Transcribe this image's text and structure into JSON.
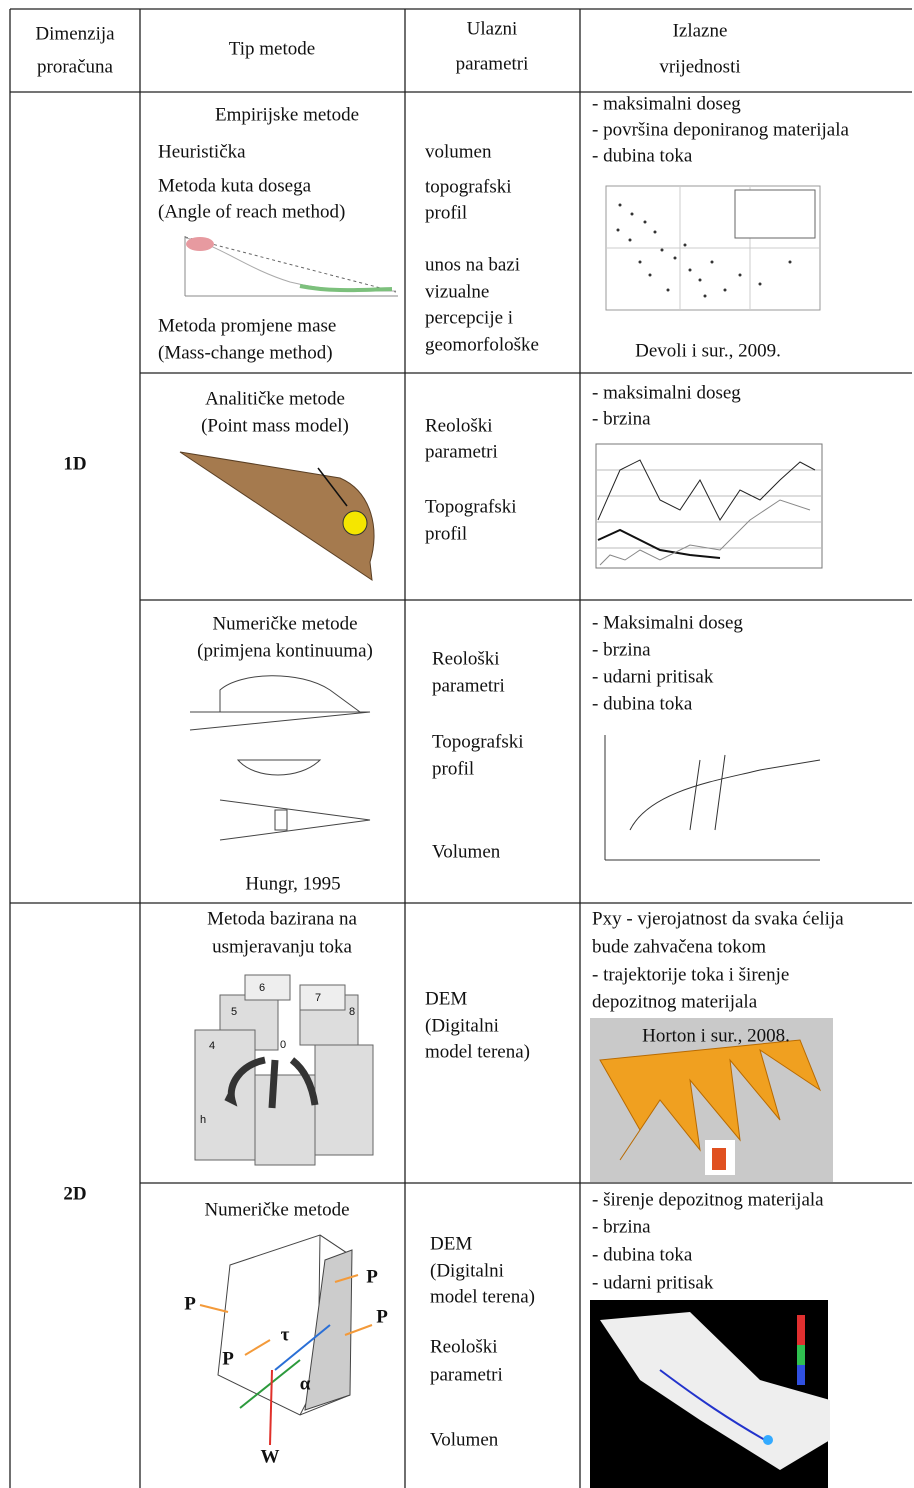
{
  "header": {
    "dimension": [
      "Dimenzija",
      "proračuna"
    ],
    "method_type": [
      "Tip metode"
    ],
    "inputs": [
      "Ulazni",
      "parametri"
    ],
    "outputs": [
      "Izlazne",
      "vrijednosti"
    ]
  },
  "rows": [
    {
      "dimension": "1D",
      "methods": [
        {
          "title": [
            "Empirijske metode"
          ],
          "items": [
            "Heuristička",
            "Metoda kuta dosega",
            "(Angle of reach method)",
            "Metoda promjene mase",
            "(Mass-change method)"
          ],
          "inputs": [
            "volumen",
            "topografski",
            "profil",
            "unos na bazi",
            "vizualne",
            "percepcije i",
            "geomorfološke"
          ],
          "outputs": [
            "- maksimalni doseg",
            "- površina deponiranog materijala",
            "- dubina toka"
          ],
          "output_caption": "Devoli i sur., 2009."
        },
        {
          "title": [
            "Analitičke metode",
            "(Point mass model)"
          ],
          "inputs": [
            "Reološki",
            "parametri",
            "Topografski",
            "profil"
          ],
          "outputs": [
            "- maksimalni doseg",
            "- brzina"
          ]
        },
        {
          "title": [
            "Numeričke metode",
            "(primjena kontinuuma)"
          ],
          "image_caption": "Hungr, 1995",
          "inputs": [
            "Reološki",
            "parametri",
            "Topografski",
            "profil",
            "Volumen"
          ],
          "outputs": [
            "- Maksimalni doseg",
            "- brzina",
            "- udarni pritisak",
            "- dubina toka"
          ]
        }
      ]
    },
    {
      "dimension": "2D",
      "methods": [
        {
          "title": [
            "Metoda bazirana na",
            "usmjeravanju toka"
          ],
          "figure_labels": [
            "6",
            "7",
            "5",
            "8",
            "4",
            "0",
            "h"
          ],
          "inputs": [
            "DEM",
            "(Digitalni",
            "model terena)"
          ],
          "outputs": [
            "Pxy - vjerojatnost da svaka ćelija",
            "bude zahvačena tokom",
            "- trajektorije toka i širenje",
            "depozitnog materijala"
          ],
          "output_caption": "Horton i sur., 2008."
        },
        {
          "title": [
            "Numeričke metode"
          ],
          "figure_labels": [
            "P",
            "P",
            "P",
            "P",
            "τ",
            "α",
            "W"
          ],
          "inputs": [
            "DEM",
            "(Digitalni",
            "model terena)",
            "Reološki",
            "parametri",
            "Volumen"
          ],
          "outputs": [
            "- širenje depozitnog materijala",
            "- brzina",
            "- dubina toka",
            "- udarni pritisak"
          ]
        }
      ]
    }
  ]
}
